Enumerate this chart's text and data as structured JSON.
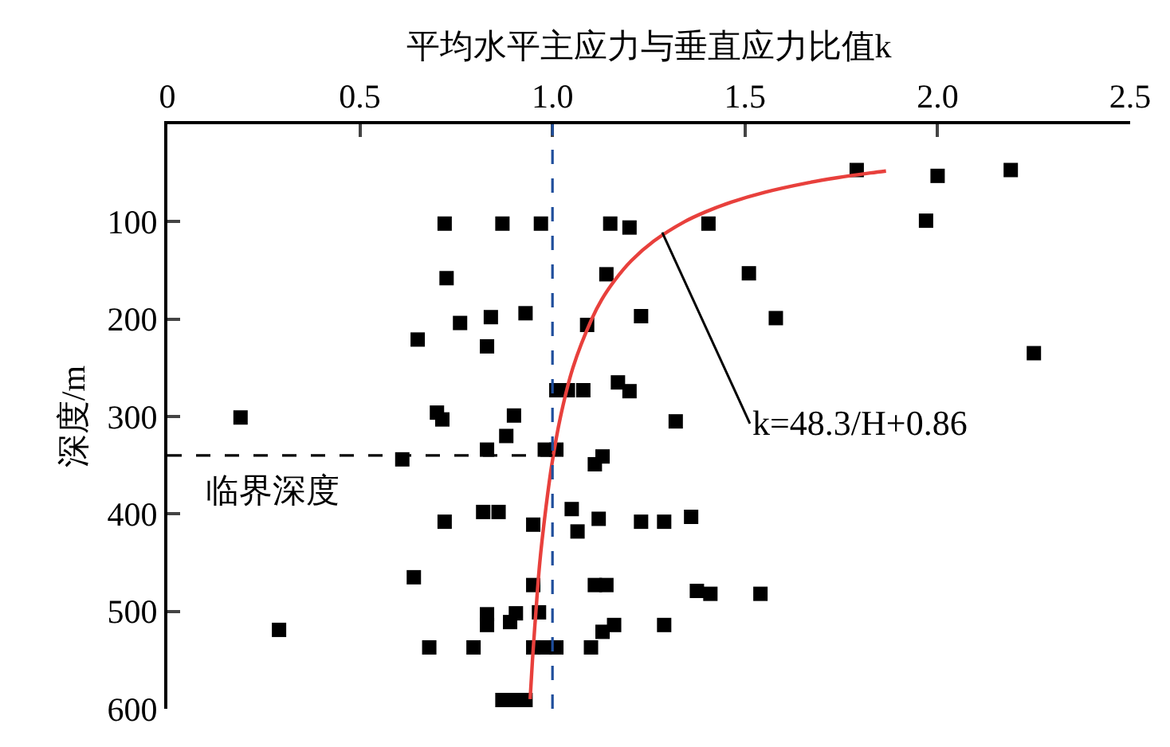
{
  "chart_data": {
    "type": "scatter",
    "xlabel": "平均水平主应力与垂直应力比值k",
    "ylabel": "深度/m",
    "xlim": [
      0,
      2.5
    ],
    "xticks": [
      0,
      0.5,
      {
        "value": 1,
        "label": "1.0"
      },
      1.5,
      {
        "value": 2,
        "label": "2.0"
      },
      2.5
    ],
    "ylim": [
      600,
      0
    ],
    "yticks": [
      100,
      200,
      300,
      400,
      500,
      600
    ],
    "series": [
      {
        "marker": "square",
        "color": "#000000",
        "x": [
          0.72,
          0.87,
          0.97,
          1.15,
          1.2,
          0.725,
          1.14,
          0.76,
          0.84,
          0.93,
          1.23,
          0.65,
          0.83,
          1.09,
          1.01,
          1.04,
          1.08,
          1.17,
          1.2,
          0.19,
          0.7,
          0.714,
          0.9,
          0.88,
          0.83,
          0.98,
          1.01,
          0.61,
          1.11,
          1.13,
          1.05,
          0.72,
          0.82,
          0.86,
          0.95,
          1.065,
          1.12,
          1.23,
          0.64,
          0.95,
          1.11,
          1.14,
          0.83,
          0.83,
          0.905,
          0.89,
          0.965,
          0.29,
          0.68,
          0.795,
          0.95,
          0.98,
          1.01,
          1.1,
          1.13,
          1.16,
          0.87,
          0.9,
          0.93,
          1.32,
          1.29,
          1.36,
          1.375,
          1.41,
          1.54,
          1.29,
          1.79,
          2.0,
          2.19,
          1.97,
          1.405,
          1.51,
          1.58,
          2.25
        ],
        "values": [
          102,
          102,
          102,
          102,
          106,
          158,
          154,
          204,
          198,
          194,
          197,
          221,
          228,
          206,
          273,
          273,
          273,
          265,
          274,
          301,
          296,
          303,
          299,
          320,
          334,
          334,
          334,
          344,
          349,
          341,
          395,
          408,
          398,
          398,
          411,
          418,
          405,
          408,
          465,
          473,
          473,
          473,
          503,
          514,
          502,
          511,
          501,
          519,
          537,
          537,
          537,
          537,
          537,
          537,
          521,
          514,
          591,
          591,
          591,
          305,
          408,
          403,
          479,
          482,
          482,
          514,
          47,
          53,
          47,
          99,
          102,
          153,
          199,
          235
        ]
      },
      {
        "type": "line",
        "marker": "none",
        "line_style": "solid",
        "color": "#e8403c",
        "x": [
          1.866,
          1.826,
          1.738,
          1.665,
          1.55,
          1.464,
          1.397,
          1.343,
          1.263,
          1.205,
          1.162,
          1.128,
          1.102,
          1.053,
          1.021,
          0.998,
          0.981,
          0.967,
          0.957,
          0.948,
          0.942
        ],
        "values": [
          48,
          50,
          55,
          60,
          70,
          80,
          90,
          100,
          120,
          140,
          160,
          180,
          200,
          250,
          300,
          350,
          400,
          450,
          500,
          550,
          590
        ]
      }
    ],
    "ref_lines": [
      {
        "axis": "x",
        "value": 1.0,
        "color": "#1f4e9c",
        "line_style": "dashed"
      },
      {
        "axis": "y",
        "value": 340,
        "label": "临界深度",
        "color": "#000000",
        "line_style": "dashed"
      }
    ],
    "annotations": [
      {
        "text": "k=48.3/H+0.86",
        "x": 1.285,
        "y": 111
      }
    ]
  }
}
